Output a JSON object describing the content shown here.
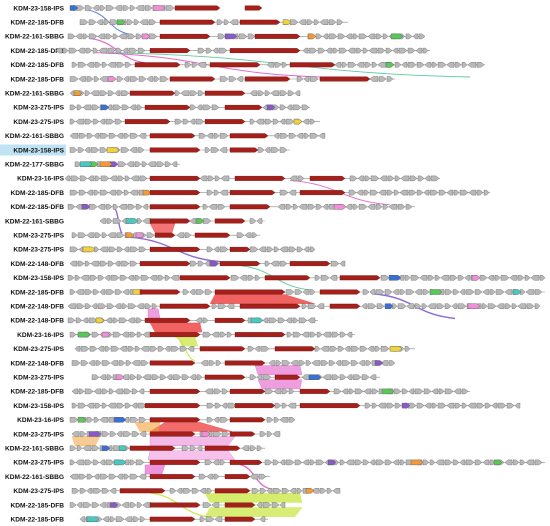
{
  "figure": {
    "lanes": [
      {
        "label": "KDM-23-158-IPS"
      },
      {
        "label": "KDM-22-185-DFB"
      },
      {
        "label": "KDM-22-161-SBBG"
      },
      {
        "label": "KDM-22-185-DFB"
      },
      {
        "label": "KDM-22-185-DFB"
      },
      {
        "label": "KDM-22-185-DFB"
      },
      {
        "label": "KDM-22-161-SBBG"
      },
      {
        "label": "KDM-23-275-IPS"
      },
      {
        "label": "KDM-23-275-IPS"
      },
      {
        "label": "KDM-22-161-SBBG"
      },
      {
        "label": "KDM-23-158-IPS",
        "highlighted": true
      },
      {
        "label": "KDM-22-177-SBBG"
      },
      {
        "label": "KDM-23-16-IPS"
      },
      {
        "label": "KDM-22-185-DFB"
      },
      {
        "label": "KDM-22-185-DFB"
      },
      {
        "label": "KDM-22-161-SBBG"
      },
      {
        "label": "KDM-23-275-IPS"
      },
      {
        "label": "KDM-23-275-IPS"
      },
      {
        "label": "KDM-22-148-DFB"
      },
      {
        "label": "KDM-23-158-IPS"
      },
      {
        "label": "KDM-22-185-DFB"
      },
      {
        "label": "KDM-22-148-DFB"
      },
      {
        "label": "KDM-22-148-DFB"
      },
      {
        "label": "KDM-23-16-IPS"
      },
      {
        "label": "KDM-23-275-IPS"
      },
      {
        "label": "KDM-22-148-DFB"
      },
      {
        "label": "KDM-23-275-IPS"
      },
      {
        "label": "KDM-22-185-DFB"
      },
      {
        "label": "KDM-23-158-IPS"
      },
      {
        "label": "KDM-23-16-IPS"
      },
      {
        "label": "KDM-23-275-IPS"
      },
      {
        "label": "KDM-22-161-SBBG"
      },
      {
        "label": "KDM-23-275-IPS"
      },
      {
        "label": "KDM-22-161-SBBG"
      },
      {
        "label": "KDM-23-275-IPS"
      },
      {
        "label": "KDM-22-185-DFB"
      },
      {
        "label": "KDM-22-185-DFB"
      }
    ],
    "colors": {
      "gene": "#b9b9b9",
      "gene_stroke": "#6a6a6a",
      "core_gene": "#a5201a",
      "synteny_red": "#ee3b3b",
      "synteny_magenta": "#e04fc4",
      "synteny_orange": "#f2a03a",
      "synteny_lime": "#c8e63c",
      "synteny_purple": "#7b4fd0",
      "synteny_green": "#3fc48a",
      "accent_blue": "#3a6fd8",
      "accent_green": "#58c957",
      "accent_pink": "#f08fd8",
      "accent_teal": "#48c9c0",
      "accent_purple": "#8a58c8",
      "accent_yellow": "#f1d23a",
      "accent_orange": "#f39a36"
    }
  }
}
